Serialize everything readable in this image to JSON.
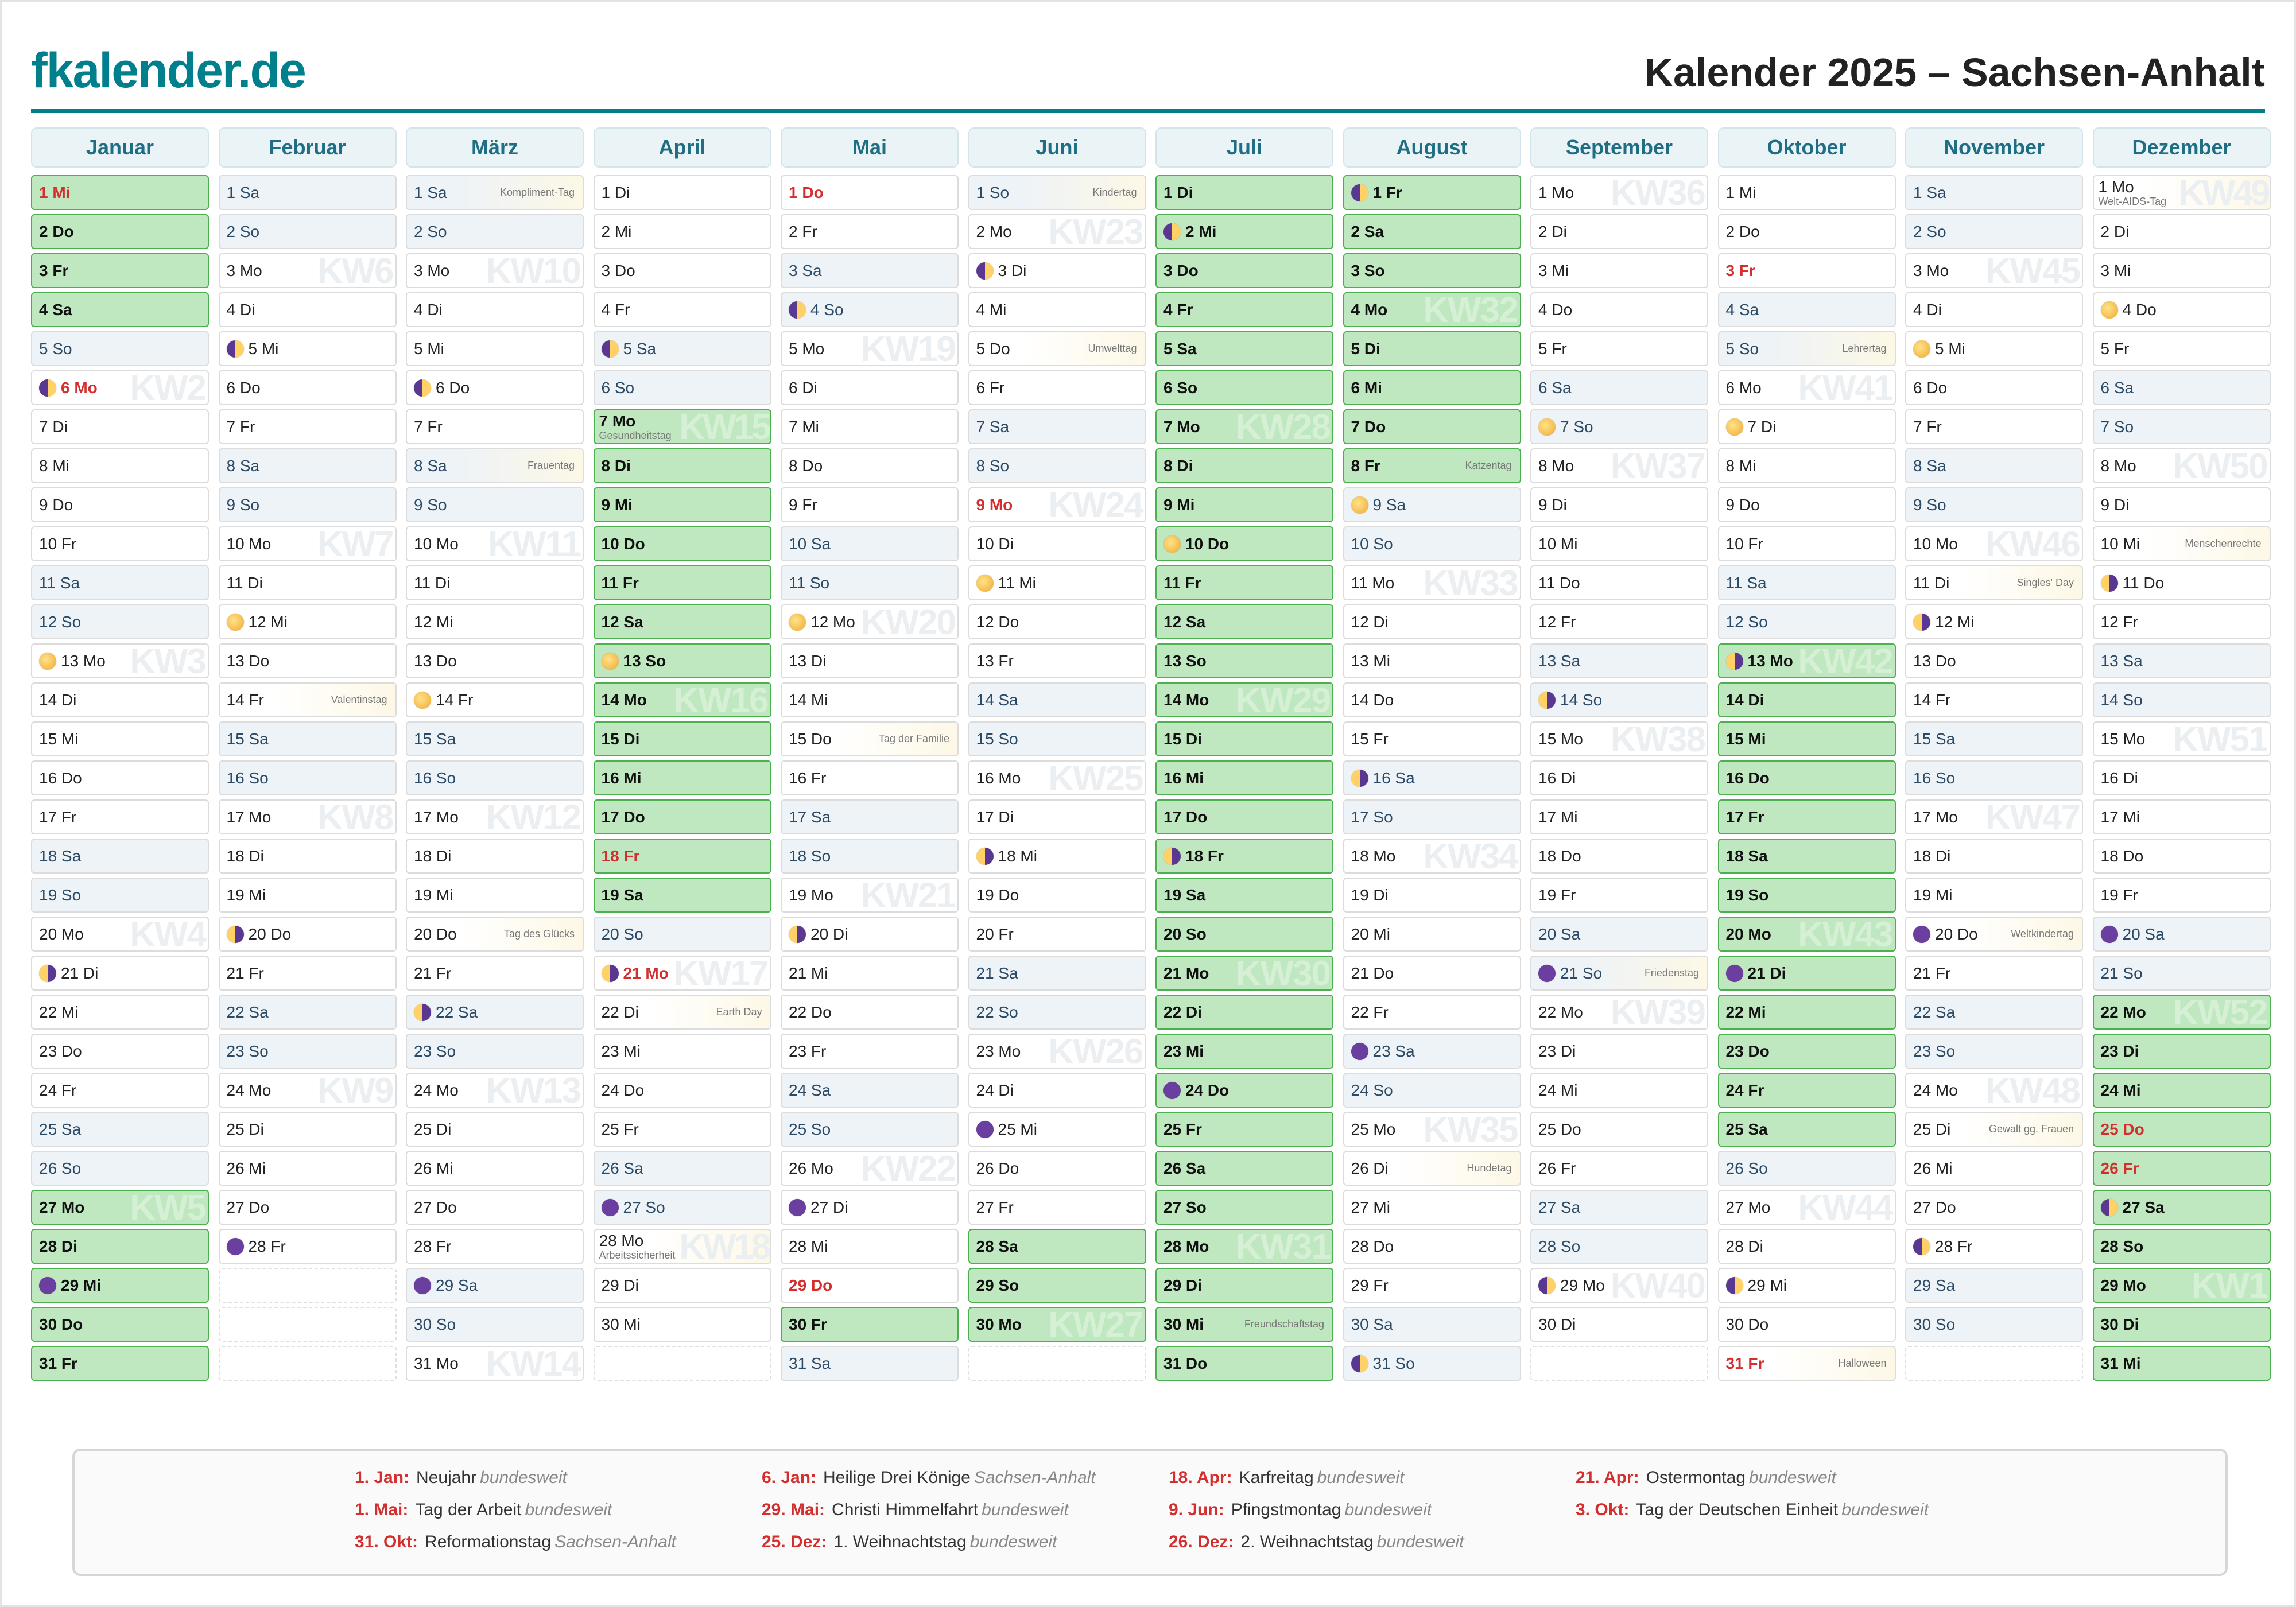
{
  "header": {
    "logo": "fkalender.de",
    "title": "Kalender 2025 – Sachsen-Anhalt"
  },
  "colors": {
    "brand": "#007f8c",
    "holiday": "#d32f2f",
    "vacation": "#c0e8c0",
    "weekend": "#eef3f7"
  },
  "months": [
    {
      "name": "Januar",
      "days": [
        "1 Mi",
        "2 Do",
        "3 Fr",
        "4 Sa",
        "5 So",
        "6 Mo",
        "7 Di",
        "8 Mi",
        "9 Do",
        "10 Fr",
        "11 Sa",
        "12 So",
        "13 Mo",
        "14 Di",
        "15 Mi",
        "16 Do",
        "17 Fr",
        "18 Sa",
        "19 So",
        "20 Mo",
        "21 Di",
        "22 Mi",
        "23 Do",
        "24 Fr",
        "25 Sa",
        "26 So",
        "27 Mo",
        "28 Di",
        "29 Mi",
        "30 Do",
        "31 Fr"
      ],
      "vacation": [
        1,
        2,
        3,
        4,
        27,
        28,
        29,
        30,
        31
      ],
      "holidays": [
        1,
        6
      ],
      "moon": {
        "6": "first",
        "13": "full",
        "21": "last",
        "29": "new"
      },
      "events": {},
      "kw": {
        "6": "KW2",
        "13": "KW3",
        "20": "KW4",
        "27": "KW5"
      }
    },
    {
      "name": "Februar",
      "days": [
        "1 Sa",
        "2 So",
        "3 Mo",
        "4 Di",
        "5 Mi",
        "6 Do",
        "7 Fr",
        "8 Sa",
        "9 So",
        "10 Mo",
        "11 Di",
        "12 Mi",
        "13 Do",
        "14 Fr",
        "15 Sa",
        "16 So",
        "17 Mo",
        "18 Di",
        "19 Mi",
        "20 Do",
        "21 Fr",
        "22 Sa",
        "23 So",
        "24 Mo",
        "25 Di",
        "26 Mi",
        "27 Do",
        "28 Fr"
      ],
      "vacation": [],
      "holidays": [],
      "moon": {
        "5": "first",
        "12": "full",
        "20": "last",
        "28": "new"
      },
      "events": {
        "14": "Valentinstag"
      },
      "kw": {
        "3": "KW6",
        "10": "KW7",
        "17": "KW8",
        "24": "KW9"
      }
    },
    {
      "name": "März",
      "days": [
        "1 Sa",
        "2 So",
        "3 Mo",
        "4 Di",
        "5 Mi",
        "6 Do",
        "7 Fr",
        "8 Sa",
        "9 So",
        "10 Mo",
        "11 Di",
        "12 Mi",
        "13 Do",
        "14 Fr",
        "15 Sa",
        "16 So",
        "17 Mo",
        "18 Di",
        "19 Mi",
        "20 Do",
        "21 Fr",
        "22 Sa",
        "23 So",
        "24 Mo",
        "25 Di",
        "26 Mi",
        "27 Do",
        "28 Fr",
        "29 Sa",
        "30 So",
        "31 Mo"
      ],
      "vacation": [],
      "holidays": [],
      "moon": {
        "6": "first",
        "14": "full",
        "22": "last",
        "29": "new"
      },
      "events": {
        "1": "Kompliment-Tag",
        "8": "Frauentag",
        "20": "Tag des Glücks"
      },
      "kw": {
        "3": "KW10",
        "10": "KW11",
        "17": "KW12",
        "24": "KW13",
        "31": "KW14"
      }
    },
    {
      "name": "April",
      "days": [
        "1 Di",
        "2 Mi",
        "3 Do",
        "4 Fr",
        "5 Sa",
        "6 So",
        "7 Mo",
        "8 Di",
        "9 Mi",
        "10 Do",
        "11 Fr",
        "12 Sa",
        "13 So",
        "14 Mo",
        "15 Di",
        "16 Mi",
        "17 Do",
        "18 Fr",
        "19 Sa",
        "20 So",
        "21 Mo",
        "22 Di",
        "23 Mi",
        "24 Do",
        "25 Fr",
        "26 Sa",
        "27 So",
        "28 Mo",
        "29 Di",
        "30 Mi"
      ],
      "vacation": [
        7,
        8,
        9,
        10,
        11,
        12,
        13,
        14,
        15,
        16,
        17,
        18,
        19
      ],
      "holidays": [
        18,
        21
      ],
      "moon": {
        "5": "first",
        "13": "full",
        "21": "last",
        "27": "new"
      },
      "events": {
        "7": "Gesundheitstag",
        "22": "Earth Day",
        "28": "Arbeitssicherheit"
      },
      "kw": {
        "7": "KW15",
        "14": "KW16",
        "21": "KW17",
        "28": "KW18"
      }
    },
    {
      "name": "Mai",
      "days": [
        "1 Do",
        "2 Fr",
        "3 Sa",
        "4 So",
        "5 Mo",
        "6 Di",
        "7 Mi",
        "8 Do",
        "9 Fr",
        "10 Sa",
        "11 So",
        "12 Mo",
        "13 Di",
        "14 Mi",
        "15 Do",
        "16 Fr",
        "17 Sa",
        "18 So",
        "19 Mo",
        "20 Di",
        "21 Mi",
        "22 Do",
        "23 Fr",
        "24 Sa",
        "25 So",
        "26 Mo",
        "27 Di",
        "28 Mi",
        "29 Do",
        "30 Fr",
        "31 Sa"
      ],
      "vacation": [
        30
      ],
      "holidays": [
        1,
        29
      ],
      "moon": {
        "4": "first",
        "12": "full",
        "20": "last",
        "27": "new"
      },
      "events": {
        "15": "Tag der Familie"
      },
      "kw": {
        "5": "KW19",
        "12": "KW20",
        "19": "KW21",
        "26": "KW22"
      }
    },
    {
      "name": "Juni",
      "days": [
        "1 So",
        "2 Mo",
        "3 Di",
        "4 Mi",
        "5 Do",
        "6 Fr",
        "7 Sa",
        "8 So",
        "9 Mo",
        "10 Di",
        "11 Mi",
        "12 Do",
        "13 Fr",
        "14 Sa",
        "15 So",
        "16 Mo",
        "17 Di",
        "18 Mi",
        "19 Do",
        "20 Fr",
        "21 Sa",
        "22 So",
        "23 Mo",
        "24 Di",
        "25 Mi",
        "26 Do",
        "27 Fr",
        "28 Sa",
        "29 So",
        "30 Mo"
      ],
      "vacation": [
        28,
        29,
        30
      ],
      "holidays": [
        9
      ],
      "moon": {
        "3": "first",
        "11": "full",
        "18": "last",
        "25": "new"
      },
      "events": {
        "1": "Kindertag",
        "5": "Umwelttag"
      },
      "kw": {
        "2": "KW23",
        "9": "KW24",
        "16": "KW25",
        "23": "KW26",
        "30": "KW27"
      }
    },
    {
      "name": "Juli",
      "days": [
        "1 Di",
        "2 Mi",
        "3 Do",
        "4 Fr",
        "5 Sa",
        "6 So",
        "7 Mo",
        "8 Di",
        "9 Mi",
        "10 Do",
        "11 Fr",
        "12 Sa",
        "13 So",
        "14 Mo",
        "15 Di",
        "16 Mi",
        "17 Do",
        "18 Fr",
        "19 Sa",
        "20 So",
        "21 Mo",
        "22 Di",
        "23 Mi",
        "24 Do",
        "25 Fr",
        "26 Sa",
        "27 So",
        "28 Mo",
        "29 Di",
        "30 Mi",
        "31 Do"
      ],
      "vacation": [
        1,
        2,
        3,
        4,
        5,
        6,
        7,
        8,
        9,
        10,
        11,
        12,
        13,
        14,
        15,
        16,
        17,
        18,
        19,
        20,
        21,
        22,
        23,
        24,
        25,
        26,
        27,
        28,
        29,
        30,
        31
      ],
      "holidays": [],
      "moon": {
        "2": "first",
        "10": "full",
        "18": "last",
        "24": "new"
      },
      "events": {
        "30": "Freundschaftstag"
      },
      "kw": {
        "7": "KW28",
        "14": "KW29",
        "21": "KW30",
        "28": "KW31"
      }
    },
    {
      "name": "August",
      "days": [
        "1 Fr",
        "2 Sa",
        "3 So",
        "4 Mo",
        "5 Di",
        "6 Mi",
        "7 Do",
        "8 Fr",
        "9 Sa",
        "10 So",
        "11 Mo",
        "12 Di",
        "13 Mi",
        "14 Do",
        "15 Fr",
        "16 Sa",
        "17 So",
        "18 Mo",
        "19 Di",
        "20 Mi",
        "21 Do",
        "22 Fr",
        "23 Sa",
        "24 So",
        "25 Mo",
        "26 Di",
        "27 Mi",
        "28 Do",
        "29 Fr",
        "30 Sa",
        "31 So"
      ],
      "vacation": [
        1,
        2,
        3,
        4,
        5,
        6,
        7,
        8
      ],
      "holidays": [],
      "moon": {
        "1": "first",
        "9": "full",
        "16": "last",
        "23": "new",
        "31": "first"
      },
      "events": {
        "8": "Katzentag",
        "26": "Hundetag"
      },
      "kw": {
        "4": "KW32",
        "11": "KW33",
        "18": "KW34",
        "25": "KW35"
      }
    },
    {
      "name": "September",
      "days": [
        "1 Mo",
        "2 Di",
        "3 Mi",
        "4 Do",
        "5 Fr",
        "6 Sa",
        "7 So",
        "8 Mo",
        "9 Di",
        "10 Mi",
        "11 Do",
        "12 Fr",
        "13 Sa",
        "14 So",
        "15 Mo",
        "16 Di",
        "17 Mi",
        "18 Do",
        "19 Fr",
        "20 Sa",
        "21 So",
        "22 Mo",
        "23 Di",
        "24 Mi",
        "25 Do",
        "26 Fr",
        "27 Sa",
        "28 So",
        "29 Mo",
        "30 Di"
      ],
      "vacation": [],
      "holidays": [],
      "moon": {
        "7": "full",
        "14": "last",
        "21": "new",
        "29": "first"
      },
      "events": {
        "21": "Friedenstag"
      },
      "kw": {
        "1": "KW36",
        "8": "KW37",
        "15": "KW38",
        "22": "KW39",
        "29": "KW40"
      }
    },
    {
      "name": "Oktober",
      "days": [
        "1 Mi",
        "2 Do",
        "3 Fr",
        "4 Sa",
        "5 So",
        "6 Mo",
        "7 Di",
        "8 Mi",
        "9 Do",
        "10 Fr",
        "11 Sa",
        "12 So",
        "13 Mo",
        "14 Di",
        "15 Mi",
        "16 Do",
        "17 Fr",
        "18 Sa",
        "19 So",
        "20 Mo",
        "21 Di",
        "22 Mi",
        "23 Do",
        "24 Fr",
        "25 Sa",
        "26 So",
        "27 Mo",
        "28 Di",
        "29 Mi",
        "30 Do",
        "31 Fr"
      ],
      "vacation": [
        13,
        14,
        15,
        16,
        17,
        18,
        19,
        20,
        21,
        22,
        23,
        24,
        25
      ],
      "holidays": [
        3,
        31
      ],
      "moon": {
        "7": "full",
        "13": "last",
        "21": "new",
        "29": "first"
      },
      "events": {
        "5": "Lehrertag",
        "31": "Halloween"
      },
      "kw": {
        "6": "KW41",
        "13": "KW42",
        "20": "KW43",
        "27": "KW44"
      }
    },
    {
      "name": "November",
      "days": [
        "1 Sa",
        "2 So",
        "3 Mo",
        "4 Di",
        "5 Mi",
        "6 Do",
        "7 Fr",
        "8 Sa",
        "9 So",
        "10 Mo",
        "11 Di",
        "12 Mi",
        "13 Do",
        "14 Fr",
        "15 Sa",
        "16 So",
        "17 Mo",
        "18 Di",
        "19 Mi",
        "20 Do",
        "21 Fr",
        "22 Sa",
        "23 So",
        "24 Mo",
        "25 Di",
        "26 Mi",
        "27 Do",
        "28 Fr",
        "29 Sa",
        "30 So"
      ],
      "vacation": [],
      "holidays": [],
      "moon": {
        "5": "full",
        "12": "last",
        "20": "new",
        "28": "first"
      },
      "events": {
        "11": "Singles' Day",
        "20": "Weltkindertag",
        "25": "Gewalt gg. Frauen"
      },
      "kw": {
        "3": "KW45",
        "10": "KW46",
        "17": "KW47",
        "24": "KW48"
      }
    },
    {
      "name": "Dezember",
      "days": [
        "1 Mo",
        "2 Di",
        "3 Mi",
        "4 Do",
        "5 Fr",
        "6 Sa",
        "7 So",
        "8 Mo",
        "9 Di",
        "10 Mi",
        "11 Do",
        "12 Fr",
        "13 Sa",
        "14 So",
        "15 Mo",
        "16 Di",
        "17 Mi",
        "18 Do",
        "19 Fr",
        "20 Sa",
        "21 So",
        "22 Mo",
        "23 Di",
        "24 Mi",
        "25 Do",
        "26 Fr",
        "27 Sa",
        "28 So",
        "29 Mo",
        "30 Di",
        "31 Mi"
      ],
      "vacation": [
        22,
        23,
        24,
        25,
        26,
        27,
        28,
        29,
        30,
        31
      ],
      "holidays": [
        25,
        26
      ],
      "moon": {
        "4": "full",
        "11": "last",
        "20": "new",
        "27": "first"
      },
      "events": {
        "1": "Welt-AIDS-Tag",
        "10": "Menschenrechte"
      },
      "kw": {
        "1": "KW49",
        "8": "KW50",
        "15": "KW51",
        "22": "KW52",
        "29": "KW1"
      }
    }
  ],
  "legend": [
    {
      "date": "1. Jan:",
      "name": "Neujahr",
      "region": "bundesweit"
    },
    {
      "date": "6. Jan:",
      "name": "Heilige Drei Könige",
      "region": "Sachsen-Anhalt"
    },
    {
      "date": "18. Apr:",
      "name": "Karfreitag",
      "region": "bundesweit"
    },
    {
      "date": "21. Apr:",
      "name": "Ostermontag",
      "region": "bundesweit"
    },
    {
      "date": "1. Mai:",
      "name": "Tag der Arbeit",
      "region": "bundesweit"
    },
    {
      "date": "29. Mai:",
      "name": "Christi Himmelfahrt",
      "region": "bundesweit"
    },
    {
      "date": "9. Jun:",
      "name": "Pfingstmontag",
      "region": "bundesweit"
    },
    {
      "date": "3. Okt:",
      "name": "Tag der Deutschen Einheit",
      "region": "bundesweit"
    },
    {
      "date": "31. Okt:",
      "name": "Reformationstag",
      "region": "Sachsen-Anhalt"
    },
    {
      "date": "25. Dez:",
      "name": "1. Weihnachtstag",
      "region": "bundesweit"
    },
    {
      "date": "26. Dez:",
      "name": "2. Weihnachtstag",
      "region": "bundesweit"
    }
  ]
}
